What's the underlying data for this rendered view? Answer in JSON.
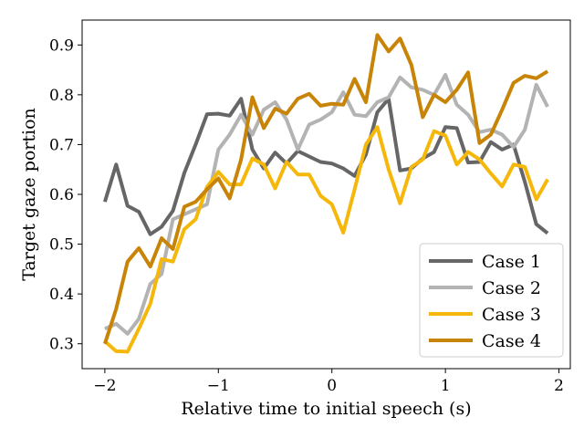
{
  "chart_data": {
    "type": "line",
    "xlabel": "Relative time to initial speech (s)",
    "ylabel": "Target gaze portion",
    "xlim": [
      -2.2,
      2.1
    ],
    "ylim": [
      0.25,
      0.95
    ],
    "xticks": [
      -2,
      -1,
      0,
      1,
      2
    ],
    "xtick_labels": [
      "−2",
      "−1",
      "0",
      "1",
      "2"
    ],
    "yticks": [
      0.3,
      0.4,
      0.5,
      0.6,
      0.7,
      0.8,
      0.9
    ],
    "ytick_labels": [
      "0.3",
      "0.4",
      "0.5",
      "0.6",
      "0.7",
      "0.8",
      "0.9"
    ],
    "grid": false,
    "legend_position": "bottom-right",
    "x": [
      -2.0,
      -1.9,
      -1.8,
      -1.7,
      -1.6,
      -1.5,
      -1.4,
      -1.3,
      -1.2,
      -1.1,
      -1.0,
      -0.9,
      -0.8,
      -0.7,
      -0.6,
      -0.5,
      -0.4,
      -0.3,
      -0.2,
      -0.1,
      0.0,
      0.1,
      0.2,
      0.3,
      0.4,
      0.5,
      0.6,
      0.7,
      0.8,
      0.9,
      1.0,
      1.1,
      1.2,
      1.3,
      1.4,
      1.5,
      1.6,
      1.7,
      1.8,
      1.9
    ],
    "series": [
      {
        "name": "Case 1",
        "color": "#666666",
        "values": [
          0.585,
          0.66,
          0.577,
          0.565,
          0.52,
          0.535,
          0.567,
          0.643,
          0.7,
          0.761,
          0.762,
          0.758,
          0.792,
          0.69,
          0.652,
          0.684,
          0.662,
          0.687,
          0.676,
          0.665,
          0.662,
          0.652,
          0.637,
          0.68,
          0.765,
          0.792,
          0.648,
          0.652,
          0.672,
          0.685,
          0.735,
          0.733,
          0.664,
          0.665,
          0.705,
          0.69,
          0.7,
          0.625,
          0.54,
          0.522
        ]
      },
      {
        "name": "Case 2",
        "color": "#b3b3b3",
        "values": [
          0.33,
          0.34,
          0.32,
          0.35,
          0.42,
          0.44,
          0.55,
          0.56,
          0.57,
          0.58,
          0.69,
          0.72,
          0.76,
          0.72,
          0.77,
          0.785,
          0.75,
          0.69,
          0.74,
          0.75,
          0.765,
          0.805,
          0.76,
          0.757,
          0.785,
          0.795,
          0.835,
          0.815,
          0.81,
          0.8,
          0.84,
          0.78,
          0.76,
          0.725,
          0.73,
          0.72,
          0.695,
          0.73,
          0.82,
          0.776
        ]
      },
      {
        "name": "Case 3",
        "color": "#f5b80a",
        "values": [
          0.305,
          0.285,
          0.284,
          0.33,
          0.38,
          0.47,
          0.465,
          0.53,
          0.55,
          0.615,
          0.645,
          0.62,
          0.62,
          0.672,
          0.66,
          0.612,
          0.665,
          0.64,
          0.64,
          0.597,
          0.58,
          0.523,
          0.61,
          0.7,
          0.735,
          0.65,
          0.582,
          0.655,
          0.67,
          0.727,
          0.718,
          0.66,
          0.685,
          0.67,
          0.642,
          0.616,
          0.66,
          0.655,
          0.59,
          0.63
        ]
      },
      {
        "name": "Case 4",
        "color": "#c88406",
        "values": [
          0.3,
          0.37,
          0.465,
          0.492,
          0.455,
          0.512,
          0.49,
          0.575,
          0.585,
          0.61,
          0.632,
          0.592,
          0.67,
          0.795,
          0.733,
          0.772,
          0.762,
          0.792,
          0.802,
          0.778,
          0.782,
          0.78,
          0.832,
          0.785,
          0.92,
          0.887,
          0.913,
          0.86,
          0.755,
          0.8,
          0.785,
          0.81,
          0.845,
          0.703,
          0.72,
          0.77,
          0.824,
          0.838,
          0.833,
          0.847
        ]
      }
    ]
  }
}
